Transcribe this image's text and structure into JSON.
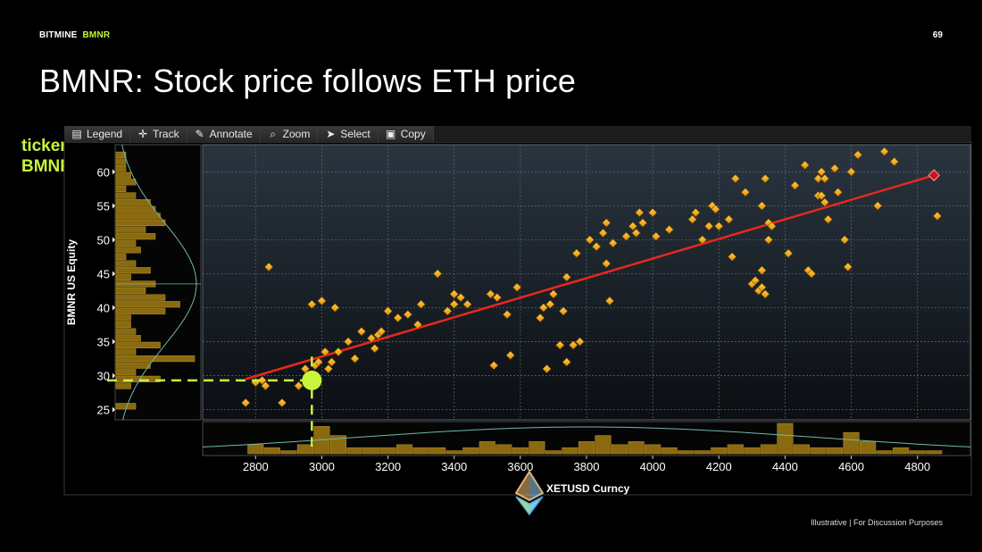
{
  "header": {
    "brand": "BITMINE",
    "ticker": "BMNR",
    "page_number": "69"
  },
  "title": "BMNR: Stock price follows ETH price",
  "ticker_callout": {
    "line1": "ticker:",
    "line2": "BMNR"
  },
  "toolbar": {
    "buttons": [
      {
        "label": "Legend",
        "icon": "legend-icon"
      },
      {
        "label": "Track",
        "icon": "crosshair-icon"
      },
      {
        "label": "Annotate",
        "icon": "pencil-icon"
      },
      {
        "label": "Zoom",
        "icon": "magnifier-icon"
      },
      {
        "label": "Select",
        "icon": "cursor-icon"
      },
      {
        "label": "Copy",
        "icon": "clipboard-icon"
      }
    ]
  },
  "footer": "Illustrative  |  For Discussion Purposes",
  "colors": {
    "accent": "#c8f53c",
    "points": "#f0a818",
    "regression": "#e8281e",
    "histogram": "#8a6a10"
  },
  "chart_data": {
    "type": "scatter",
    "xlabel": "XETUSD Curncy",
    "ylabel": "BMNR US Equity",
    "xlim": [
      2640,
      4960
    ],
    "ylim": [
      23.5,
      64
    ],
    "xticks": [
      2800,
      3000,
      3200,
      3400,
      3600,
      3800,
      4000,
      4200,
      4400,
      4600,
      4800
    ],
    "yticks": [
      25,
      30,
      35,
      40,
      45,
      50,
      55,
      60
    ],
    "regression_line": [
      [
        2770,
        29.5
      ],
      [
        4850,
        59.5
      ]
    ],
    "highlight_point": [
      4850,
      59.5
    ],
    "current_marker": [
      2970,
      29.3
    ],
    "points": [
      [
        2770,
        26
      ],
      [
        2800,
        29
      ],
      [
        2820,
        29.3
      ],
      [
        2830,
        28.5
      ],
      [
        2840,
        46
      ],
      [
        2880,
        26
      ],
      [
        2930,
        28.5
      ],
      [
        2950,
        31
      ],
      [
        2960,
        30
      ],
      [
        2970,
        40.5
      ],
      [
        2980,
        31.5
      ],
      [
        2990,
        32
      ],
      [
        3000,
        41
      ],
      [
        3010,
        33.5
      ],
      [
        3020,
        31
      ],
      [
        3030,
        32
      ],
      [
        3040,
        40
      ],
      [
        3050,
        33.5
      ],
      [
        3080,
        35
      ],
      [
        3100,
        32.5
      ],
      [
        3120,
        36.5
      ],
      [
        3150,
        35.5
      ],
      [
        3160,
        34
      ],
      [
        3170,
        36
      ],
      [
        3180,
        36.5
      ],
      [
        3200,
        39.5
      ],
      [
        3230,
        38.5
      ],
      [
        3260,
        39
      ],
      [
        3290,
        37.5
      ],
      [
        3300,
        40.5
      ],
      [
        3350,
        45
      ],
      [
        3380,
        39.5
      ],
      [
        3400,
        42
      ],
      [
        3400,
        40.5
      ],
      [
        3420,
        41.5
      ],
      [
        3440,
        40.5
      ],
      [
        3510,
        42
      ],
      [
        3520,
        31.5
      ],
      [
        3530,
        41.5
      ],
      [
        3560,
        39
      ],
      [
        3570,
        33
      ],
      [
        3590,
        43
      ],
      [
        3660,
        38.5
      ],
      [
        3670,
        40
      ],
      [
        3680,
        31
      ],
      [
        3690,
        40.5
      ],
      [
        3700,
        42
      ],
      [
        3720,
        34.5
      ],
      [
        3730,
        39.5
      ],
      [
        3740,
        44.5
      ],
      [
        3740,
        32
      ],
      [
        3760,
        34.5
      ],
      [
        3770,
        48
      ],
      [
        3780,
        35
      ],
      [
        3810,
        50
      ],
      [
        3830,
        49
      ],
      [
        3850,
        51
      ],
      [
        3860,
        46.5
      ],
      [
        3860,
        52.5
      ],
      [
        3870,
        41
      ],
      [
        3880,
        49.5
      ],
      [
        3920,
        50.5
      ],
      [
        3940,
        52
      ],
      [
        3950,
        51
      ],
      [
        3960,
        54
      ],
      [
        3970,
        52.5
      ],
      [
        4000,
        54
      ],
      [
        4010,
        50.5
      ],
      [
        4050,
        51.5
      ],
      [
        4120,
        53
      ],
      [
        4130,
        54
      ],
      [
        4150,
        50
      ],
      [
        4170,
        52
      ],
      [
        4180,
        55
      ],
      [
        4190,
        54.5
      ],
      [
        4200,
        52
      ],
      [
        4230,
        53
      ],
      [
        4240,
        47.5
      ],
      [
        4250,
        59
      ],
      [
        4280,
        57
      ],
      [
        4300,
        43.5
      ],
      [
        4310,
        44
      ],
      [
        4320,
        42.5
      ],
      [
        4330,
        43
      ],
      [
        4330,
        45.5
      ],
      [
        4330,
        55
      ],
      [
        4340,
        42
      ],
      [
        4340,
        59
      ],
      [
        4350,
        52.5
      ],
      [
        4350,
        50
      ],
      [
        4360,
        52
      ],
      [
        4410,
        48
      ],
      [
        4430,
        58
      ],
      [
        4460,
        61
      ],
      [
        4470,
        45.5
      ],
      [
        4480,
        45
      ],
      [
        4500,
        56.5
      ],
      [
        4500,
        59
      ],
      [
        4510,
        56.5
      ],
      [
        4510,
        60
      ],
      [
        4520,
        55.5
      ],
      [
        4520,
        59
      ],
      [
        4530,
        53
      ],
      [
        4550,
        60.5
      ],
      [
        4560,
        57
      ],
      [
        4580,
        50
      ],
      [
        4590,
        46
      ],
      [
        4600,
        60
      ],
      [
        4620,
        62.5
      ],
      [
        4680,
        55
      ],
      [
        4700,
        63
      ],
      [
        4730,
        61.5
      ],
      [
        4860,
        53.5
      ]
    ],
    "x_histogram": {
      "bins": [
        2700,
        2750,
        2800,
        2850,
        2900,
        2950,
        3000,
        3050,
        3100,
        3150,
        3200,
        3250,
        3300,
        3350,
        3400,
        3450,
        3500,
        3550,
        3600,
        3650,
        3700,
        3750,
        3800,
        3850,
        3900,
        3950,
        4000,
        4050,
        4100,
        4150,
        4200,
        4250,
        4300,
        4350,
        4400,
        4450,
        4500,
        4550,
        4600,
        4650,
        4700,
        4750,
        4800,
        4850,
        4900
      ],
      "counts": [
        0,
        0,
        3,
        2,
        1,
        3,
        9,
        6,
        2,
        2,
        2,
        3,
        2,
        2,
        1,
        2,
        4,
        3,
        2,
        4,
        1,
        2,
        4,
        6,
        3,
        4,
        3,
        2,
        1,
        1,
        2,
        3,
        2,
        3,
        10,
        3,
        2,
        2,
        7,
        4,
        1,
        2,
        1,
        1,
        0
      ]
    },
    "y_histogram": {
      "bins": [
        62.5,
        61.5,
        60.5,
        59.5,
        58.5,
        57.5,
        56.5,
        55.5,
        54.5,
        53.5,
        52.5,
        51.5,
        50.5,
        49.5,
        48.5,
        47.5,
        46.5,
        45.5,
        44.5,
        43.5,
        42.5,
        41.5,
        40.5,
        39.5,
        38.5,
        37.5,
        36.5,
        35.5,
        34.5,
        33.5,
        32.5,
        31.5,
        30.5,
        29.5,
        28.5,
        27.5,
        26.5,
        25.5,
        24.5
      ],
      "counts": [
        2,
        2,
        2,
        3,
        4,
        2,
        4,
        7,
        8,
        9,
        10,
        6,
        8,
        4,
        5,
        2,
        4,
        7,
        3,
        8,
        6,
        10,
        13,
        10,
        3,
        3,
        4,
        5,
        9,
        4,
        16,
        7,
        4,
        9,
        3,
        0,
        0,
        4,
        0
      ]
    }
  }
}
